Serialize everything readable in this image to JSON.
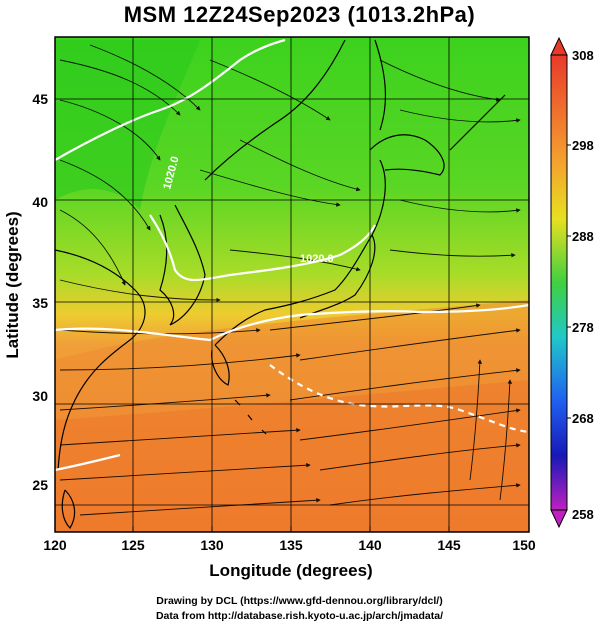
{
  "title": "MSM 12Z24Sep2023 (1013.2hPa)",
  "map": {
    "xlabel": "Longitude (degrees)",
    "ylabel": "Latitude  (degrees)",
    "x_ticks": [
      "120",
      "125",
      "130",
      "135",
      "140",
      "145",
      "150"
    ],
    "y_ticks": [
      "25",
      "30",
      "35",
      "40",
      "45"
    ],
    "contour_labels": [
      "1020.0",
      "1020.0"
    ]
  },
  "colorbar": {
    "labels": [
      "308",
      "298",
      "288",
      "278",
      "268",
      "258"
    ],
    "colors": [
      "#e83a2a",
      "#f59a30",
      "#e8e020",
      "#40d040",
      "#20c8c8",
      "#2060f0",
      "#1818b8",
      "#c020c0"
    ]
  },
  "credits": [
    "Drawing by DCL (https://www.gfd-dennou.org/library/dcl/)",
    "Data from http://database.rish.kyoto-u.ac.jp/arch/jmadata/"
  ]
}
